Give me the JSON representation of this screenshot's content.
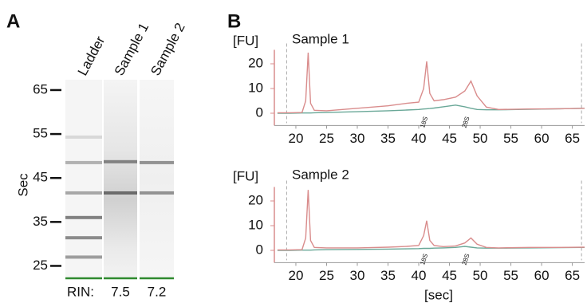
{
  "panels": [
    "A",
    "B"
  ],
  "chart_data": [
    {
      "type": "gel",
      "ylabel": "Sec",
      "ylim": [
        22,
        67.35
      ],
      "yticks": [
        25,
        35,
        45,
        55,
        65
      ],
      "categories": [
        "Ladder",
        "Sample 1",
        "Sample 2"
      ],
      "rin_label": "RIN:",
      "rin": [
        null,
        7.5,
        7.2
      ],
      "lanes": [
        {
          "bands": [
            27,
            31.4,
            36,
            41.6,
            48.5,
            54.3
          ],
          "intensity": [
            0.45,
            0.55,
            0.6,
            0.4,
            0.35,
            0.15
          ]
        },
        {
          "bands": [
            41.6,
            48.7
          ],
          "intensity": [
            0.65,
            0.55
          ]
        },
        {
          "bands": [
            41.6,
            48.5
          ],
          "intensity": [
            0.5,
            0.5
          ]
        }
      ]
    },
    {
      "type": "line",
      "title": "Sample 1",
      "ylabel": "[FU]",
      "xlim": [
        16.5,
        67
      ],
      "xticks": [
        20,
        25,
        30,
        35,
        40,
        45,
        50,
        55,
        60,
        65
      ],
      "ylim": [
        -4,
        25
      ],
      "yticks": [
        0,
        10,
        20
      ],
      "dashed_x": [
        18.5,
        66.5
      ],
      "x": [
        17,
        19,
        21,
        21.6,
        22,
        22.4,
        23,
        25,
        30,
        35,
        38,
        40,
        40.8,
        41.3,
        41.8,
        42.5,
        44,
        46,
        47.5,
        48.5,
        49.5,
        51,
        53,
        58,
        63,
        67
      ],
      "series": [
        {
          "color": "#d98c8c",
          "values": [
            0.2,
            0.2,
            0.3,
            5,
            24.5,
            4,
            1.2,
            1,
            2,
            3,
            4,
            4.5,
            10,
            21,
            8,
            5,
            5.5,
            6.5,
            9,
            13,
            7,
            2.5,
            1.5,
            1.7,
            1.8,
            2
          ]
        },
        {
          "color": "#6aa898",
          "values": [
            0,
            0,
            0.1,
            0.1,
            0.1,
            0.1,
            0.2,
            0.3,
            0.6,
            1,
            1.3,
            1.5,
            1.7,
            1.8,
            1.9,
            2.1,
            2.6,
            3.3,
            2.6,
            2,
            1.5,
            1.4,
            1.4,
            1.6,
            1.8,
            2
          ]
        }
      ],
      "annotations": [
        {
          "text": "18S",
          "x": 41.2,
          "color": "#c050c8"
        },
        {
          "text": "28S",
          "x": 48,
          "color": "#3a8a80"
        }
      ]
    },
    {
      "type": "line",
      "title": "Sample 2",
      "ylabel": "[FU]",
      "xlabel": "[sec]",
      "xlim": [
        16.5,
        67
      ],
      "xticks": [
        20,
        25,
        30,
        35,
        40,
        45,
        50,
        55,
        60,
        65
      ],
      "ylim": [
        -4,
        25
      ],
      "yticks": [
        0,
        10,
        20
      ],
      "dashed_x": [
        18.5,
        66.5
      ],
      "x": [
        17,
        19,
        21,
        21.6,
        22,
        22.4,
        23,
        25,
        30,
        35,
        38,
        40,
        40.8,
        41.3,
        41.8,
        42.5,
        44,
        46,
        47.5,
        48.5,
        49.5,
        51,
        53,
        58,
        63,
        67
      ],
      "series": [
        {
          "color": "#d98c8c",
          "values": [
            0.2,
            0.2,
            0.3,
            5,
            24.5,
            4,
            1.2,
            1,
            1,
            1.3,
            1.6,
            2,
            6,
            12,
            4,
            2,
            1.5,
            1.8,
            3,
            5,
            2.5,
            1.2,
            1,
            1.2,
            1.2,
            1.3
          ]
        },
        {
          "color": "#6aa898",
          "values": [
            0,
            0,
            0.1,
            0.1,
            0.1,
            0.1,
            0.2,
            0.3,
            0.4,
            0.5,
            0.6,
            0.7,
            0.8,
            0.8,
            0.8,
            0.9,
            1,
            1.2,
            1.6,
            1.3,
            1,
            0.9,
            0.9,
            1,
            1.1,
            1.2
          ]
        }
      ],
      "annotations": [
        {
          "text": "18S",
          "x": 41.2,
          "color": "#c050c8"
        },
        {
          "text": "28S",
          "x": 48,
          "color": "#3a8a80"
        }
      ]
    }
  ]
}
